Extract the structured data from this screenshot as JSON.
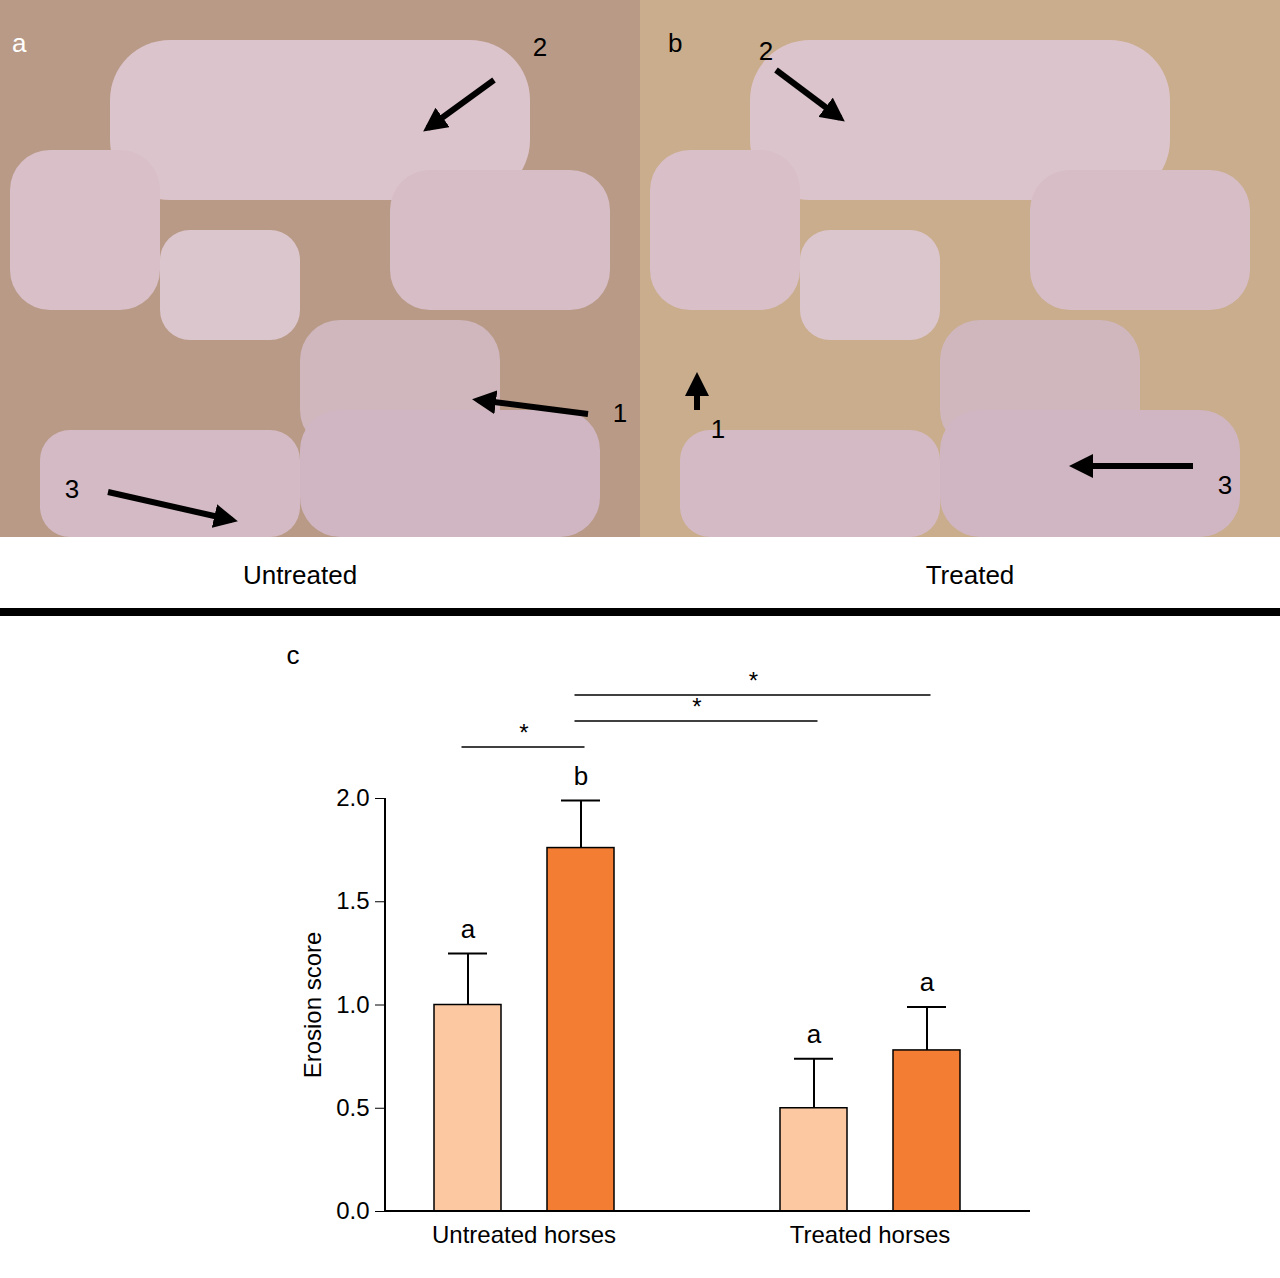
{
  "photo_panels": [
    {
      "letter": "a",
      "caption": "Untreated",
      "arrow_labels": [
        "1",
        "2",
        "3"
      ]
    },
    {
      "letter": "b",
      "caption": "Treated",
      "arrow_labels": [
        "1",
        "2",
        "3"
      ]
    }
  ],
  "chart_data": {
    "type": "bar",
    "title": "c",
    "categories": [
      "Untreated horses",
      "Treated horses"
    ],
    "series": [
      {
        "color": "#fbc8a1",
        "values": [
          1.0,
          0.5
        ],
        "errors": [
          0.25,
          0.24
        ],
        "letters": [
          "a",
          "a"
        ]
      },
      {
        "color": "#f27d33",
        "values": [
          1.76,
          0.78
        ],
        "errors": [
          0.23,
          0.21
        ],
        "letters": [
          "b",
          "a"
        ]
      }
    ],
    "ylabel": "Erosion score",
    "ylim": [
      0,
      2
    ],
    "yticks": [
      {
        "value": 0,
        "label": "0.0"
      },
      0.5,
      {
        "value": 1,
        "label": "1.0"
      },
      1.5,
      {
        "value": 2,
        "label": "2.0"
      }
    ],
    "annotations": [
      {
        "from": [
          0,
          0
        ],
        "to": [
          0,
          1
        ],
        "text": "*"
      },
      {
        "from": [
          0,
          1
        ],
        "to": [
          1,
          0
        ],
        "text": "*"
      },
      {
        "from": [
          0,
          1
        ],
        "to": [
          1,
          1
        ],
        "text": "*"
      }
    ]
  }
}
